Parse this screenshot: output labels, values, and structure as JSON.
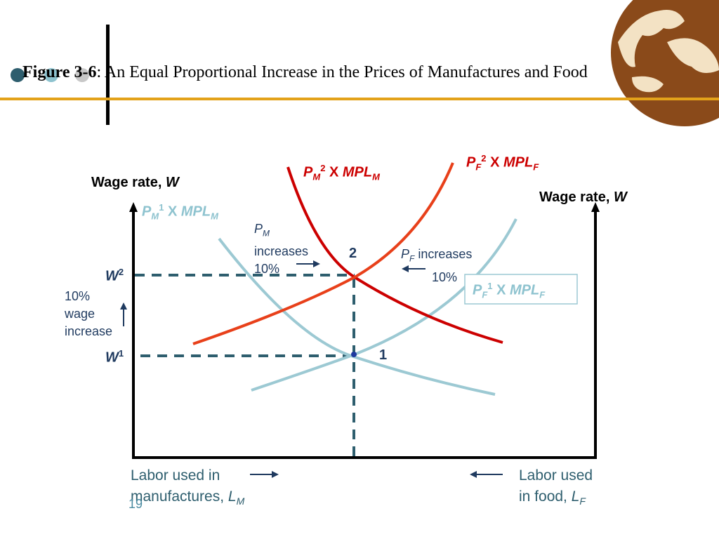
{
  "slide": {
    "title_bold": "Figure 3-6",
    "title_rest": ": An Equal Proportional Increase in the Prices of Manufactures and Food",
    "page_number": "19"
  },
  "diagram": {
    "left_axis_label": "Wage rate, ",
    "left_axis_var": "W",
    "right_axis_label": "Wage rate, ",
    "right_axis_var": "W",
    "w2_label": "W",
    "w2_sup": "2",
    "w1_label": "W",
    "w1_sup": "1",
    "point_2": "2",
    "point_1": "1",
    "wage_increase_lines": [
      "10%",
      "wage",
      "increase"
    ],
    "pm_increases": {
      "p": "P",
      "sub": "M",
      "line2": "increases",
      "line3": "10%"
    },
    "pf_increases": {
      "p": "P",
      "sub": "F",
      "rest": " increases",
      "line2": "10%"
    },
    "curve_pm2": {
      "p": "P",
      "sub": "M",
      "sup": "2",
      "x": " X ",
      "mpl": "MPL",
      "mplsub": "M"
    },
    "curve_pf2": {
      "p": "P",
      "sub": "F",
      "sup": "2",
      "x": " X ",
      "mpl": "MPL",
      "mplsub": "F"
    },
    "curve_pm1": {
      "p": "P",
      "sub": "M",
      "sup": "1",
      "x": " X ",
      "mpl": "MPL",
      "mplsub": "M"
    },
    "curve_pf1": {
      "p": "P",
      "sub": "F",
      "sup": "1",
      "x": " X ",
      "mpl": "MPL",
      "mplsub": "F"
    },
    "labor_mfg_line1": "Labor used in",
    "labor_mfg_line2": "manufactures, ",
    "labor_mfg_var": "L",
    "labor_mfg_sub": "M",
    "labor_food_line1": "Labor used",
    "labor_food_line2": "in food, ",
    "labor_food_var": "L",
    "labor_food_sub": "F"
  },
  "colors": {
    "accent_line": "#e3a21a",
    "curve_red": "#cc0000",
    "curve_orange_red": "#e8401a",
    "curve_light_blue": "#9cc9d3",
    "dash_teal": "#2e5e6e"
  }
}
